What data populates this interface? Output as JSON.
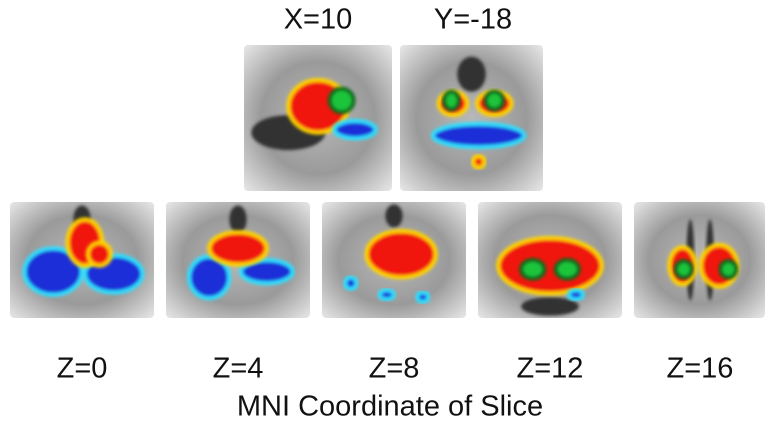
{
  "top_labels": [
    "X=10",
    "Y=-18"
  ],
  "bottom_labels": [
    "Z=0",
    "Z=4",
    "Z=8",
    "Z=12",
    "Z=16"
  ],
  "caption": "MNI Coordinate of Slice"
}
